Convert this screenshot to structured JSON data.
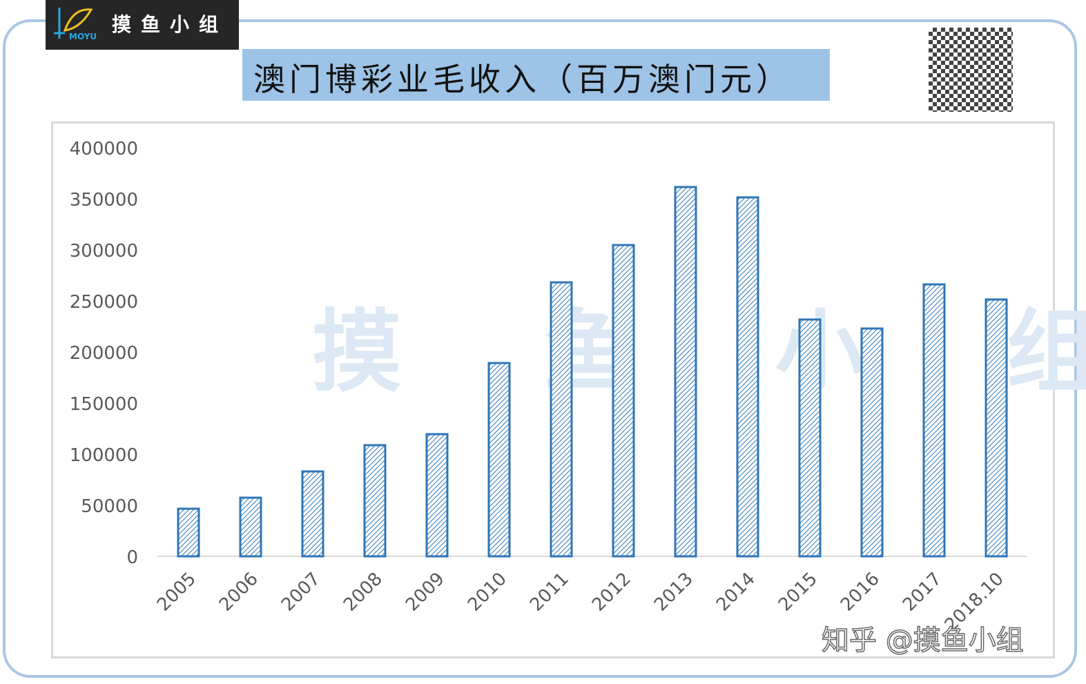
{
  "brand": {
    "logo_text": "摸鱼小组",
    "logo_sub": "MOYU"
  },
  "header": {
    "title": "澳门博彩业毛收入（百万澳门元）"
  },
  "watermark": {
    "background": "摸 鱼 小 组",
    "corner": "知乎 @摸鱼小组"
  },
  "colors": {
    "bar": "#2e75b6",
    "title_bg": "#9dc3e6",
    "frame": "#a9c6e6"
  },
  "chart_data": {
    "type": "bar",
    "title": "澳门博彩业毛收入（百万澳门元）",
    "categories": [
      "2005",
      "2006",
      "2007",
      "2008",
      "2009",
      "2010",
      "2011",
      "2012",
      "2013",
      "2014",
      "2015",
      "2016",
      "2017",
      "2018.10"
    ],
    "values": [
      46600,
      57400,
      83100,
      108800,
      119600,
      189200,
      268200,
      304700,
      361500,
      351400,
      231800,
      223000,
      266200,
      251400
    ],
    "ylim": [
      0,
      400000
    ],
    "yticks": [
      "0",
      "50000",
      "100000",
      "150000",
      "200000",
      "250000",
      "300000",
      "350000",
      "400000"
    ],
    "xlabel": "",
    "ylabel": "",
    "grid": false,
    "legend": "none",
    "bar_fill": "diagonal hatch"
  }
}
